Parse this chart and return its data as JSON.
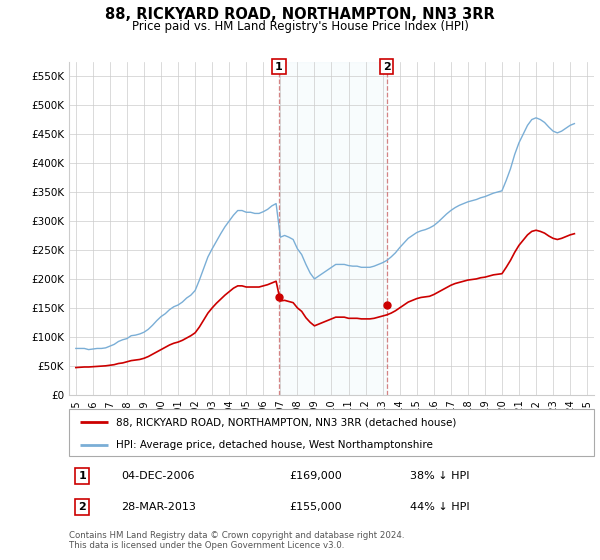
{
  "title": "88, RICKYARD ROAD, NORTHAMPTON, NN3 3RR",
  "subtitle": "Price paid vs. HM Land Registry's House Price Index (HPI)",
  "legend_line1": "88, RICKYARD ROAD, NORTHAMPTON, NN3 3RR (detached house)",
  "legend_line2": "HPI: Average price, detached house, West Northamptonshire",
  "annotation1_date": "04-DEC-2006",
  "annotation1_price": "£169,000",
  "annotation1_hpi": "38% ↓ HPI",
  "annotation1_year": 2006.92,
  "annotation1_value": 169000,
  "annotation2_date": "28-MAR-2013",
  "annotation2_price": "£155,000",
  "annotation2_hpi": "44% ↓ HPI",
  "annotation2_year": 2013.23,
  "annotation2_value": 155000,
  "red_line_color": "#cc0000",
  "blue_line_color": "#7aaed6",
  "background_color": "#ffffff",
  "grid_color": "#cccccc",
  "ylim": [
    0,
    575000
  ],
  "yticks": [
    0,
    50000,
    100000,
    150000,
    200000,
    250000,
    300000,
    350000,
    400000,
    450000,
    500000,
    550000
  ],
  "ytick_labels": [
    "£0",
    "£50K",
    "£100K",
    "£150K",
    "£200K",
    "£250K",
    "£300K",
    "£350K",
    "£400K",
    "£450K",
    "£500K",
    "£550K"
  ],
  "footnote": "Contains HM Land Registry data © Crown copyright and database right 2024.\nThis data is licensed under the Open Government Licence v3.0.",
  "hpi_data": {
    "years": [
      1995.0,
      1995.25,
      1995.5,
      1995.75,
      1996.0,
      1996.25,
      1996.5,
      1996.75,
      1997.0,
      1997.25,
      1997.5,
      1997.75,
      1998.0,
      1998.25,
      1998.5,
      1998.75,
      1999.0,
      1999.25,
      1999.5,
      1999.75,
      2000.0,
      2000.25,
      2000.5,
      2000.75,
      2001.0,
      2001.25,
      2001.5,
      2001.75,
      2002.0,
      2002.25,
      2002.5,
      2002.75,
      2003.0,
      2003.25,
      2003.5,
      2003.75,
      2004.0,
      2004.25,
      2004.5,
      2004.75,
      2005.0,
      2005.25,
      2005.5,
      2005.75,
      2006.0,
      2006.25,
      2006.5,
      2006.75,
      2007.0,
      2007.25,
      2007.5,
      2007.75,
      2008.0,
      2008.25,
      2008.5,
      2008.75,
      2009.0,
      2009.25,
      2009.5,
      2009.75,
      2010.0,
      2010.25,
      2010.5,
      2010.75,
      2011.0,
      2011.25,
      2011.5,
      2011.75,
      2012.0,
      2012.25,
      2012.5,
      2012.75,
      2013.0,
      2013.25,
      2013.5,
      2013.75,
      2014.0,
      2014.25,
      2014.5,
      2014.75,
      2015.0,
      2015.25,
      2015.5,
      2015.75,
      2016.0,
      2016.25,
      2016.5,
      2016.75,
      2017.0,
      2017.25,
      2017.5,
      2017.75,
      2018.0,
      2018.25,
      2018.5,
      2018.75,
      2019.0,
      2019.25,
      2019.5,
      2019.75,
      2020.0,
      2020.25,
      2020.5,
      2020.75,
      2021.0,
      2021.25,
      2021.5,
      2021.75,
      2022.0,
      2022.25,
      2022.5,
      2022.75,
      2023.0,
      2023.25,
      2023.5,
      2023.75,
      2024.0,
      2024.25
    ],
    "values": [
      80000,
      80000,
      80000,
      78000,
      79000,
      80000,
      80000,
      81000,
      84000,
      87000,
      92000,
      95000,
      97000,
      102000,
      103000,
      105000,
      108000,
      113000,
      120000,
      128000,
      135000,
      140000,
      147000,
      152000,
      155000,
      160000,
      167000,
      172000,
      180000,
      198000,
      218000,
      238000,
      252000,
      265000,
      278000,
      290000,
      300000,
      310000,
      318000,
      318000,
      315000,
      315000,
      313000,
      313000,
      316000,
      320000,
      326000,
      330000,
      272000,
      275000,
      272000,
      268000,
      252000,
      242000,
      225000,
      210000,
      200000,
      205000,
      210000,
      215000,
      220000,
      225000,
      225000,
      225000,
      223000,
      222000,
      222000,
      220000,
      220000,
      220000,
      222000,
      225000,
      228000,
      232000,
      238000,
      245000,
      254000,
      262000,
      270000,
      275000,
      280000,
      283000,
      285000,
      288000,
      292000,
      298000,
      305000,
      312000,
      318000,
      323000,
      327000,
      330000,
      333000,
      335000,
      337000,
      340000,
      342000,
      345000,
      348000,
      350000,
      352000,
      370000,
      390000,
      415000,
      435000,
      450000,
      465000,
      475000,
      478000,
      475000,
      470000,
      462000,
      455000,
      452000,
      455000,
      460000,
      465000,
      468000
    ]
  },
  "red_data": {
    "years": [
      1995.0,
      1995.25,
      1995.5,
      1995.75,
      1996.0,
      1996.25,
      1996.5,
      1996.75,
      1997.0,
      1997.25,
      1997.5,
      1997.75,
      1998.0,
      1998.25,
      1998.5,
      1998.75,
      1999.0,
      1999.25,
      1999.5,
      1999.75,
      2000.0,
      2000.25,
      2000.5,
      2000.75,
      2001.0,
      2001.25,
      2001.5,
      2001.75,
      2002.0,
      2002.25,
      2002.5,
      2002.75,
      2003.0,
      2003.25,
      2003.5,
      2003.75,
      2004.0,
      2004.25,
      2004.5,
      2004.75,
      2005.0,
      2005.25,
      2005.5,
      2005.75,
      2006.0,
      2006.25,
      2006.5,
      2006.75,
      2007.0,
      2007.25,
      2007.5,
      2007.75,
      2008.0,
      2008.25,
      2008.5,
      2008.75,
      2009.0,
      2009.25,
      2009.5,
      2009.75,
      2010.0,
      2010.25,
      2010.5,
      2010.75,
      2011.0,
      2011.25,
      2011.5,
      2011.75,
      2012.0,
      2012.25,
      2012.5,
      2012.75,
      2013.0,
      2013.25,
      2013.5,
      2013.75,
      2014.0,
      2014.25,
      2014.5,
      2014.75,
      2015.0,
      2015.25,
      2015.5,
      2015.75,
      2016.0,
      2016.25,
      2016.5,
      2016.75,
      2017.0,
      2017.25,
      2017.5,
      2017.75,
      2018.0,
      2018.25,
      2018.5,
      2018.75,
      2019.0,
      2019.25,
      2019.5,
      2019.75,
      2020.0,
      2020.25,
      2020.5,
      2020.75,
      2021.0,
      2021.25,
      2021.5,
      2021.75,
      2022.0,
      2022.25,
      2022.5,
      2022.75,
      2023.0,
      2023.25,
      2023.5,
      2023.75,
      2024.0,
      2024.25
    ],
    "values": [
      47000,
      47500,
      48000,
      48000,
      48500,
      49000,
      49500,
      50000,
      51000,
      52000,
      54000,
      55000,
      57000,
      59000,
      60000,
      61000,
      63000,
      66000,
      70000,
      74000,
      78000,
      82000,
      86000,
      89000,
      91000,
      94000,
      98000,
      102000,
      107000,
      117000,
      129000,
      141000,
      150000,
      158000,
      165000,
      172000,
      178000,
      184000,
      188000,
      188000,
      186000,
      186000,
      186000,
      186000,
      188000,
      190000,
      193000,
      196000,
      162000,
      163000,
      161000,
      159000,
      150000,
      144000,
      133000,
      125000,
      119000,
      122000,
      125000,
      128000,
      131000,
      134000,
      134000,
      134000,
      132000,
      132000,
      132000,
      131000,
      131000,
      131000,
      132000,
      134000,
      136000,
      138000,
      141000,
      145000,
      150000,
      155000,
      160000,
      163000,
      166000,
      168000,
      169000,
      170000,
      173000,
      177000,
      181000,
      185000,
      189000,
      192000,
      194000,
      196000,
      198000,
      199000,
      200000,
      202000,
      203000,
      205000,
      207000,
      208000,
      209000,
      220000,
      232000,
      246000,
      258000,
      267000,
      276000,
      282000,
      284000,
      282000,
      279000,
      274000,
      270000,
      268000,
      270000,
      273000,
      276000,
      278000
    ]
  }
}
